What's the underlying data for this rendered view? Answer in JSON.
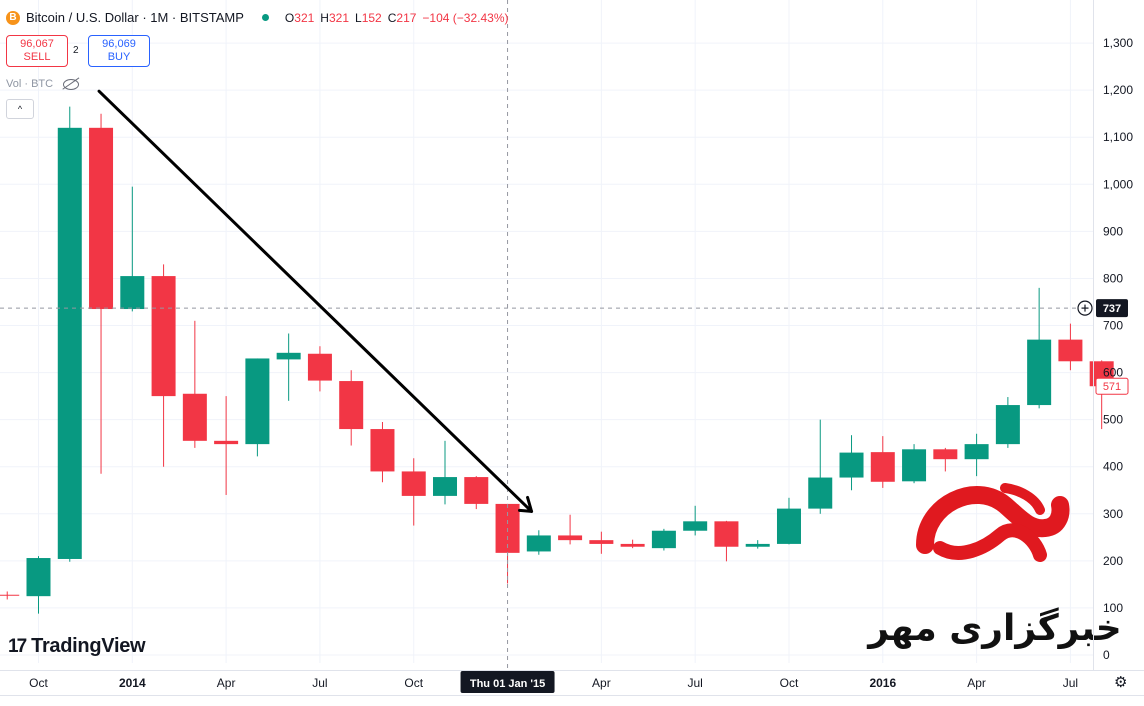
{
  "header": {
    "icon_glyph": "B",
    "title": "Bitcoin / U.S. Dollar · 1M · BITSTAMP",
    "ohlc": [
      {
        "k": "O",
        "v": "321"
      },
      {
        "k": "H",
        "v": "321"
      },
      {
        "k": "L",
        "v": "152"
      },
      {
        "k": "C",
        "v": "217"
      },
      {
        "k": "",
        "v": "−104 (−32.43%)"
      }
    ]
  },
  "trade": {
    "sell_price": "96,067",
    "sell_label": "SELL",
    "spread": "2",
    "buy_price": "96,069",
    "buy_label": "BUY"
  },
  "volume_label": "Vol · BTC",
  "collapse_glyph": "^",
  "brand": {
    "mark": "17",
    "name": "TradingView"
  },
  "settings_glyph": "⚙",
  "watermark_text": "خبرگزاری مهر",
  "colors": {
    "up": "#089981",
    "down": "#f23645",
    "grid": "#f0f3fa",
    "axis_text": "#131722"
  },
  "chart_data": {
    "type": "candlestick",
    "title": "Bitcoin / U.S. Dollar · 1M · BITSTAMP",
    "x_unit": "month",
    "ylim": [
      0,
      1300
    ],
    "y_ticks": [
      0,
      100,
      200,
      300,
      400,
      500,
      600,
      700,
      800,
      900,
      1000,
      1100,
      1200,
      1300
    ],
    "y_tick_labels": [
      "0",
      "100",
      "200",
      "300",
      "400",
      "500",
      "600",
      "700",
      "800",
      "900",
      "1,000",
      "1,100",
      "1,200",
      "1,300"
    ],
    "x_ticks": [
      {
        "month": "2013-10",
        "label": "Oct",
        "bold": false
      },
      {
        "month": "2014-01",
        "label": "2014",
        "bold": true
      },
      {
        "month": "2014-04",
        "label": "Apr",
        "bold": false
      },
      {
        "month": "2014-07",
        "label": "Jul",
        "bold": false
      },
      {
        "month": "2014-10",
        "label": "Oct",
        "bold": false
      },
      {
        "month": "2015-04",
        "label": "Apr",
        "bold": false
      },
      {
        "month": "2015-07",
        "label": "Jul",
        "bold": false
      },
      {
        "month": "2015-10",
        "label": "Oct",
        "bold": false
      },
      {
        "month": "2016-01",
        "label": "2016",
        "bold": true
      },
      {
        "month": "2016-04",
        "label": "Apr",
        "bold": false
      },
      {
        "month": "2016-07",
        "label": "Jul",
        "bold": false
      }
    ],
    "crosshair": {
      "month": "2015-01",
      "x_label": "Thu 01 Jan '15",
      "price": 737,
      "price_label": "737"
    },
    "last_price": {
      "value": 571,
      "label": "571"
    },
    "annotation": {
      "type": "arrow",
      "from": {
        "month": "2013-12",
        "price": 1200
      },
      "to": {
        "month": "2015-01",
        "price": 390
      }
    },
    "candles": [
      {
        "month": "2013-09",
        "open": 128,
        "high": 135,
        "low": 118,
        "close": 126
      },
      {
        "month": "2013-10",
        "open": 125,
        "high": 210,
        "low": 88,
        "close": 206
      },
      {
        "month": "2013-11",
        "open": 204,
        "high": 1165,
        "low": 198,
        "close": 1120
      },
      {
        "month": "2013-12",
        "open": 1120,
        "high": 1150,
        "low": 385,
        "close": 735
      },
      {
        "month": "2014-01",
        "open": 735,
        "high": 995,
        "low": 730,
        "close": 805
      },
      {
        "month": "2014-02",
        "open": 805,
        "high": 830,
        "low": 400,
        "close": 550
      },
      {
        "month": "2014-03",
        "open": 555,
        "high": 710,
        "low": 440,
        "close": 455
      },
      {
        "month": "2014-04",
        "open": 455,
        "high": 550,
        "low": 340,
        "close": 448
      },
      {
        "month": "2014-05",
        "open": 448,
        "high": 630,
        "low": 422,
        "close": 630
      },
      {
        "month": "2014-06",
        "open": 628,
        "high": 683,
        "low": 540,
        "close": 642
      },
      {
        "month": "2014-07",
        "open": 640,
        "high": 656,
        "low": 560,
        "close": 583
      },
      {
        "month": "2014-08",
        "open": 582,
        "high": 605,
        "low": 445,
        "close": 480
      },
      {
        "month": "2014-09",
        "open": 480,
        "high": 495,
        "low": 367,
        "close": 390
      },
      {
        "month": "2014-10",
        "open": 390,
        "high": 418,
        "low": 275,
        "close": 338
      },
      {
        "month": "2014-11",
        "open": 338,
        "high": 455,
        "low": 320,
        "close": 378
      },
      {
        "month": "2014-12",
        "open": 378,
        "high": 380,
        "low": 310,
        "close": 321
      },
      {
        "month": "2015-01",
        "open": 321,
        "high": 321,
        "low": 152,
        "close": 217
      },
      {
        "month": "2015-02",
        "open": 220,
        "high": 265,
        "low": 213,
        "close": 254
      },
      {
        "month": "2015-03",
        "open": 254,
        "high": 298,
        "low": 235,
        "close": 244
      },
      {
        "month": "2015-04",
        "open": 244,
        "high": 262,
        "low": 215,
        "close": 236
      },
      {
        "month": "2015-05",
        "open": 236,
        "high": 245,
        "low": 227,
        "close": 230
      },
      {
        "month": "2015-06",
        "open": 227,
        "high": 268,
        "low": 222,
        "close": 264
      },
      {
        "month": "2015-07",
        "open": 264,
        "high": 317,
        "low": 254,
        "close": 284
      },
      {
        "month": "2015-08",
        "open": 284,
        "high": 285,
        "low": 199,
        "close": 230
      },
      {
        "month": "2015-09",
        "open": 230,
        "high": 244,
        "low": 226,
        "close": 236
      },
      {
        "month": "2015-10",
        "open": 236,
        "high": 334,
        "low": 235,
        "close": 311
      },
      {
        "month": "2015-11",
        "open": 311,
        "high": 500,
        "low": 300,
        "close": 377
      },
      {
        "month": "2015-12",
        "open": 377,
        "high": 467,
        "low": 350,
        "close": 430
      },
      {
        "month": "2016-01",
        "open": 431,
        "high": 465,
        "low": 355,
        "close": 368
      },
      {
        "month": "2016-02",
        "open": 369,
        "high": 448,
        "low": 365,
        "close": 437
      },
      {
        "month": "2016-03",
        "open": 437,
        "high": 440,
        "low": 390,
        "close": 416
      },
      {
        "month": "2016-04",
        "open": 416,
        "high": 470,
        "low": 380,
        "close": 448
      },
      {
        "month": "2016-05",
        "open": 448,
        "high": 548,
        "low": 440,
        "close": 531
      },
      {
        "month": "2016-06",
        "open": 531,
        "high": 780,
        "low": 524,
        "close": 670
      },
      {
        "month": "2016-07",
        "open": 670,
        "high": 704,
        "low": 605,
        "close": 624
      },
      {
        "month": "2016-08",
        "open": 624,
        "high": 626,
        "low": 480,
        "close": 571
      }
    ]
  }
}
